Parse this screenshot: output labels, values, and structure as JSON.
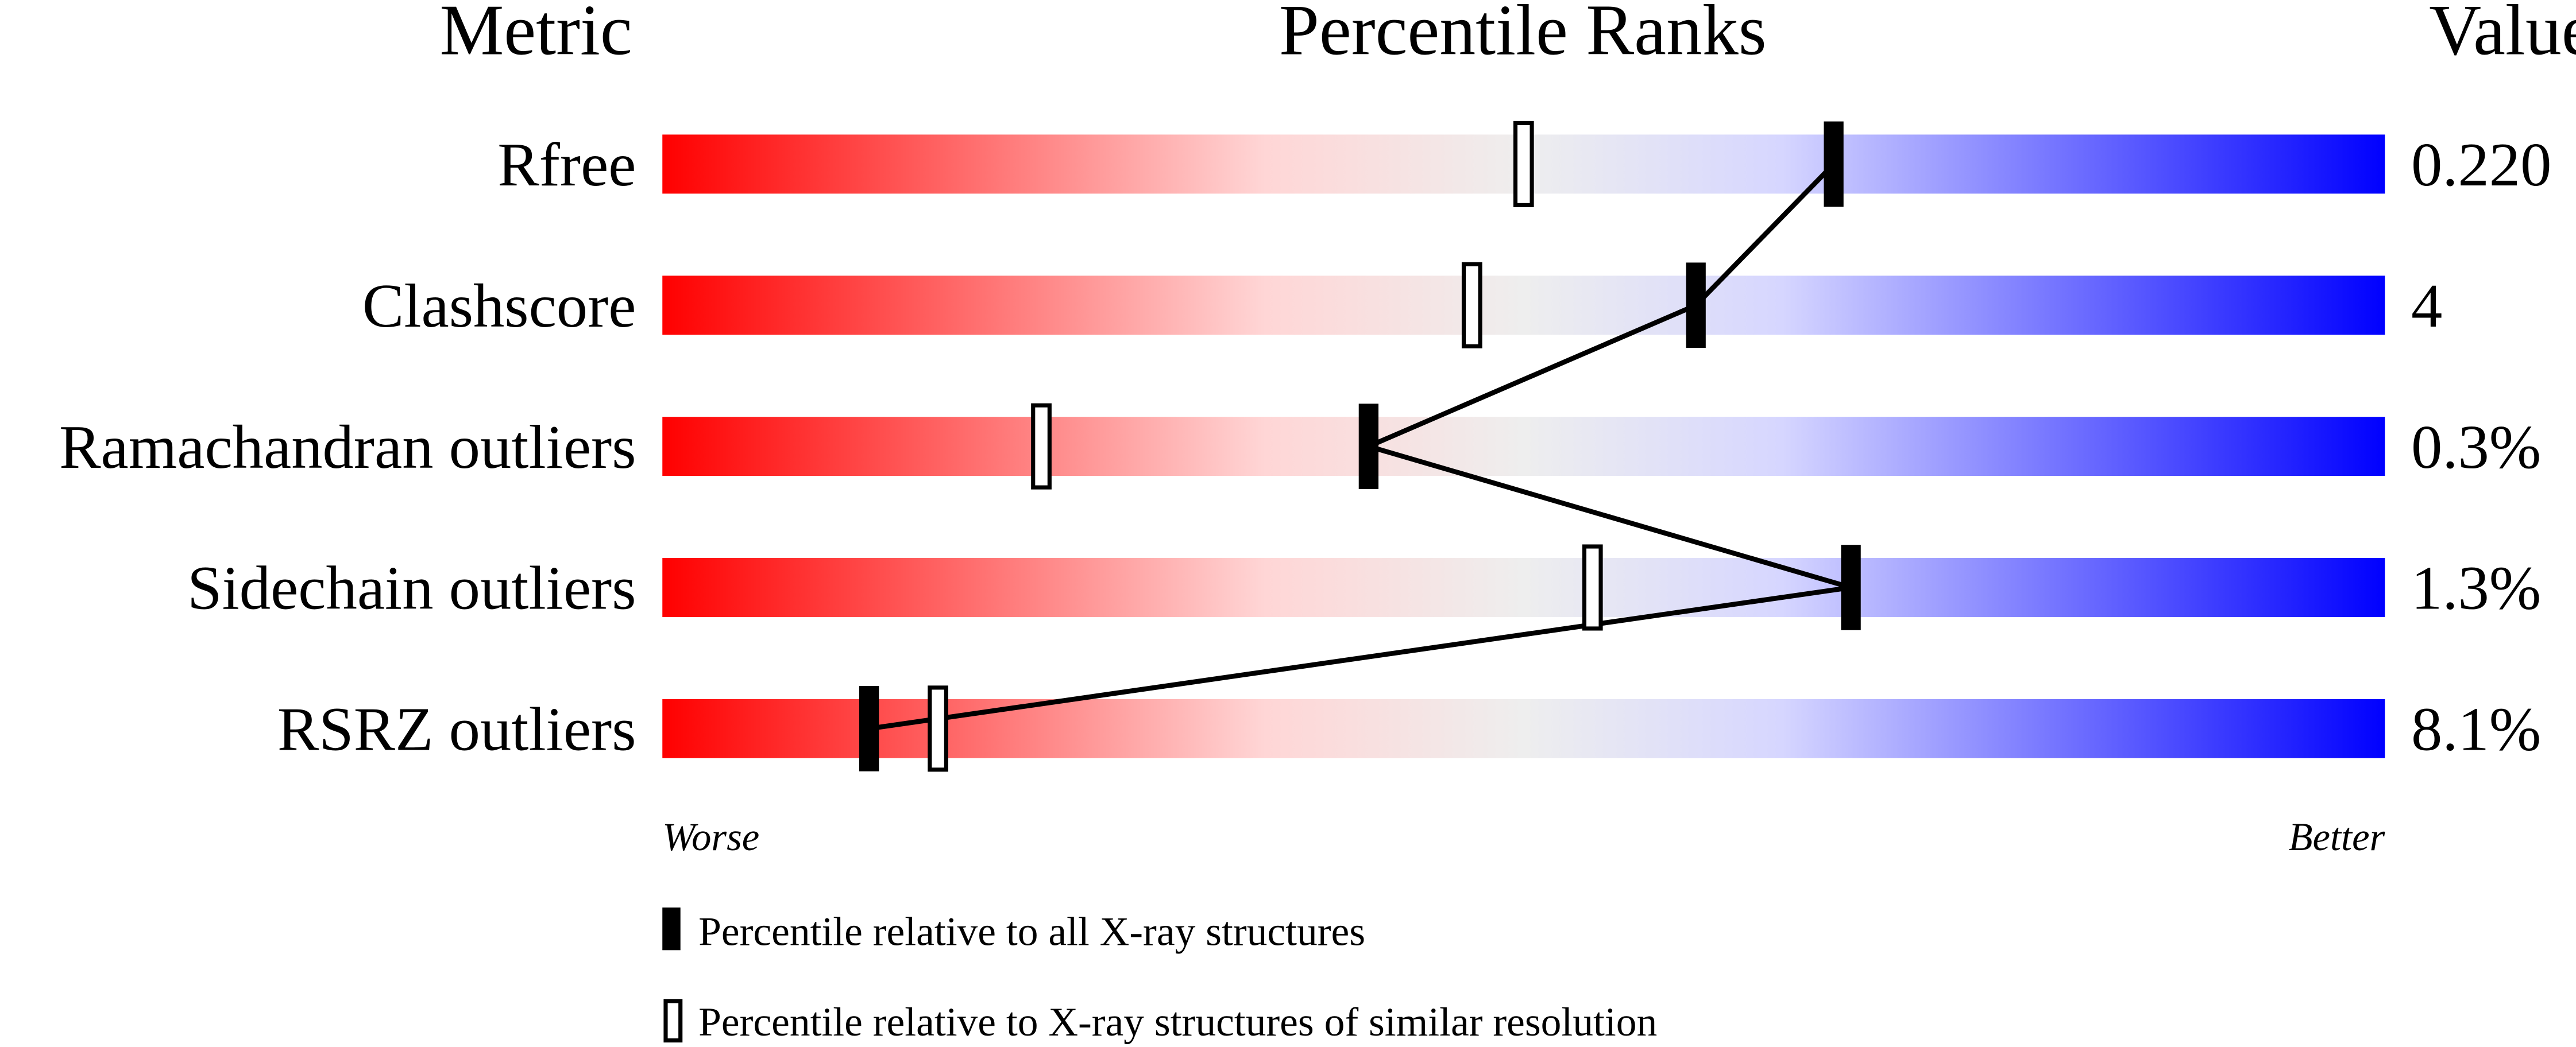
{
  "chart_data": {
    "type": "percentile-slider",
    "headers": {
      "metric": "Metric",
      "ranks": "Percentile Ranks",
      "value": "Value"
    },
    "xlim": [
      0,
      100
    ],
    "axis_ends": {
      "left": "Worse",
      "right": "Better"
    },
    "gradient_colors": [
      "#ff0000",
      "#ffd6d6",
      "#eeeeee",
      "#d6d6ff",
      "#0000ff"
    ],
    "metrics": [
      {
        "label": "Rfree",
        "value": "0.220",
        "percentile_all": 68,
        "percentile_similar": 50
      },
      {
        "label": "Clashscore",
        "value": "4",
        "percentile_all": 60,
        "percentile_similar": 47
      },
      {
        "label": "Ramachandran outliers",
        "value": "0.3%",
        "percentile_all": 41,
        "percentile_similar": 22
      },
      {
        "label": "Sidechain outliers",
        "value": "1.3%",
        "percentile_all": 69,
        "percentile_similar": 54
      },
      {
        "label": "RSRZ outliers",
        "value": "8.1%",
        "percentile_all": 12,
        "percentile_similar": 16
      }
    ],
    "legend": [
      {
        "marker": "filled",
        "text": "Percentile relative to all X-ray structures"
      },
      {
        "marker": "open",
        "text": "Percentile relative to X-ray structures of similar resolution"
      }
    ]
  }
}
